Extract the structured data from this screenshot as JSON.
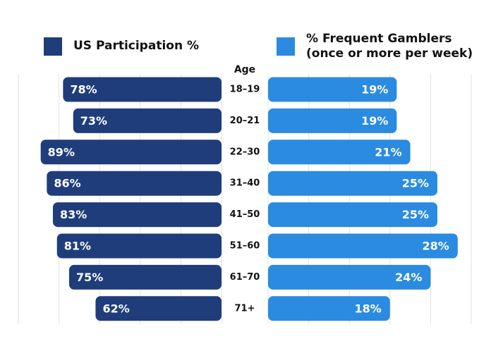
{
  "chart_data": {
    "type": "butterfly-bar",
    "category_axis_title": "Age",
    "categories": [
      "18–19",
      "20–21",
      "22–30",
      "31–40",
      "41–50",
      "51–60",
      "61–70",
      "71+"
    ],
    "series": [
      {
        "name": "US Participation %",
        "color": "#1f3d7a",
        "side": "left",
        "values": [
          78,
          73,
          89,
          86,
          83,
          81,
          75,
          62
        ],
        "value_labels": [
          "78%",
          "73%",
          "89%",
          "86%",
          "83%",
          "81%",
          "75%",
          "62%"
        ],
        "xlim": [
          0,
          100
        ],
        "xticks": [
          0,
          20,
          40,
          60,
          80,
          100
        ]
      },
      {
        "name": "% Frequent Gamblers (once or more per week)",
        "color": "#2a8be0",
        "side": "right",
        "values": [
          19,
          19,
          21,
          25,
          25,
          28,
          24,
          18
        ],
        "value_labels": [
          "19%",
          "19%",
          "21%",
          "25%",
          "25%",
          "28%",
          "24%",
          "18%"
        ],
        "xlim": [
          0,
          30
        ],
        "xticks": [
          0,
          6,
          12,
          18,
          24,
          30
        ]
      }
    ],
    "grid": true
  }
}
